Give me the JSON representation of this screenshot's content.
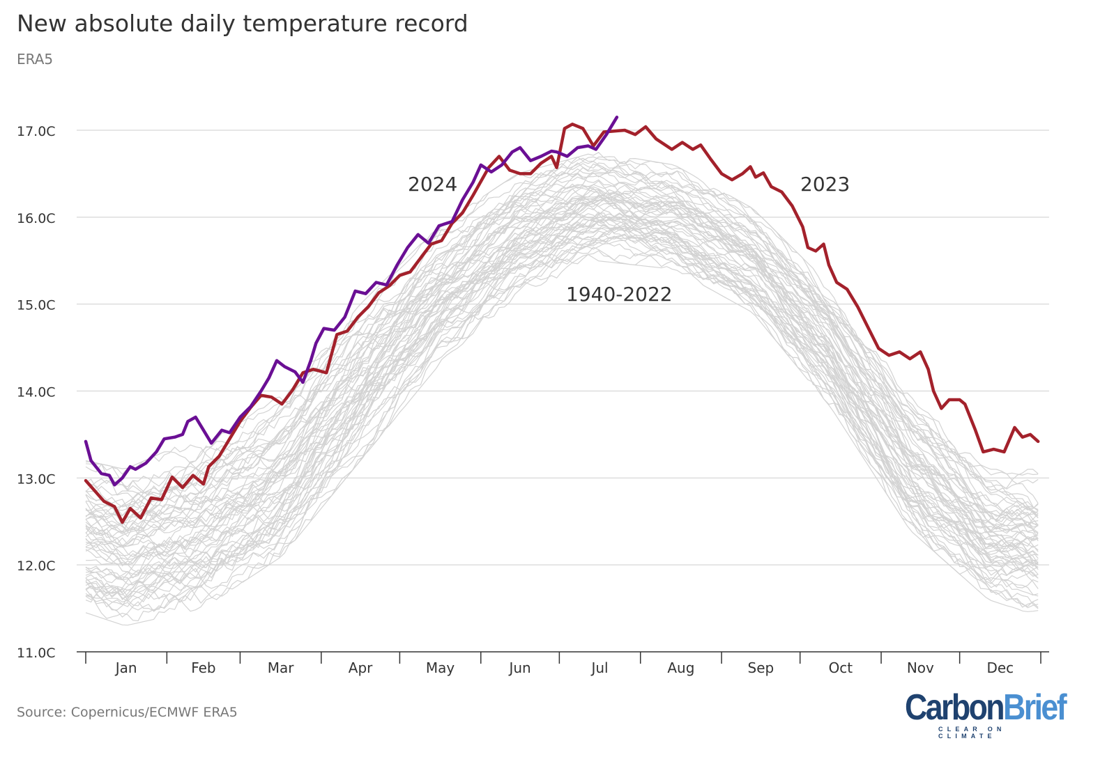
{
  "title": "New absolute daily temperature record",
  "subtitle": "ERA5",
  "source": "Source: Copernicus/ECMWF ERA5",
  "logo": {
    "part1": "Carbon",
    "part2": "Brief",
    "tagline": "CLEAR ON CLIMATE"
  },
  "chart_data": {
    "type": "line",
    "title": "New absolute daily temperature record",
    "subtitle": "ERA5",
    "xlabel": "",
    "ylabel": "",
    "ylim": [
      11.0,
      17.0
    ],
    "yticks": [
      11.0,
      12.0,
      13.0,
      14.0,
      15.0,
      16.0,
      17.0
    ],
    "ytick_labels": [
      "11.0C",
      "12.0C",
      "13.0C",
      "14.0C",
      "15.0C",
      "16.0C",
      "17.0C"
    ],
    "x_unit": "day of year",
    "xlim": [
      0,
      365
    ],
    "month_boundaries": [
      0,
      31,
      59,
      90,
      120,
      151,
      181,
      212,
      243,
      273,
      304,
      334,
      365
    ],
    "month_labels": [
      "Jan",
      "Feb",
      "Mar",
      "Apr",
      "May",
      "Jun",
      "Jul",
      "Aug",
      "Sep",
      "Oct",
      "Nov",
      "Dec"
    ],
    "grid": "horizontal",
    "colors": {
      "2024": "#6a0f94",
      "2023": "#a3212b",
      "historical": "#d3d3d3"
    },
    "annotations": [
      "2024",
      "2023",
      "1940-2022"
    ],
    "historical_envelope": {
      "name": "1940-2022",
      "day": [
        0,
        15,
        45,
        75,
        105,
        135,
        165,
        195,
        225,
        255,
        285,
        315,
        345,
        365
      ],
      "min": [
        11.45,
        11.3,
        11.5,
        12.1,
        13.2,
        14.3,
        15.1,
        15.5,
        15.4,
        14.9,
        13.8,
        12.4,
        11.6,
        11.4
      ],
      "max": [
        13.2,
        13.1,
        13.5,
        14.0,
        15.0,
        15.9,
        16.5,
        16.75,
        16.6,
        16.1,
        15.2,
        14.0,
        13.1,
        13.1
      ]
    },
    "series": [
      {
        "name": "2023",
        "day": [
          0,
          7,
          11,
          14,
          17,
          21,
          25,
          29,
          33,
          37,
          41,
          45,
          47,
          51,
          55,
          59,
          63,
          67,
          71,
          75,
          79,
          83,
          87,
          92,
          96,
          100,
          104,
          108,
          112,
          116,
          120,
          124,
          128,
          132,
          136,
          140,
          144,
          148,
          154,
          158,
          162,
          166,
          170,
          174,
          178,
          180,
          183,
          186,
          190,
          194,
          198,
          202,
          206,
          210,
          214,
          218,
          222,
          224,
          228,
          232,
          235,
          239,
          243,
          247,
          251,
          254,
          256,
          259,
          262,
          266,
          270,
          274,
          276,
          279,
          282,
          284,
          287,
          291,
          295,
          299,
          303,
          307,
          311,
          315,
          319,
          322,
          324,
          327,
          330,
          334,
          336,
          340,
          343,
          347,
          351,
          355,
          358,
          361,
          364
        ],
        "values": [
          12.97,
          12.73,
          12.67,
          12.49,
          12.65,
          12.54,
          12.77,
          12.75,
          13.01,
          12.89,
          13.03,
          12.93,
          13.13,
          13.25,
          13.45,
          13.65,
          13.81,
          13.95,
          13.93,
          13.85,
          14.01,
          14.21,
          14.25,
          14.21,
          14.65,
          14.69,
          14.85,
          14.97,
          15.13,
          15.21,
          15.33,
          15.37,
          15.53,
          15.69,
          15.73,
          15.93,
          16.05,
          16.25,
          16.57,
          16.7,
          16.54,
          16.5,
          16.5,
          16.62,
          16.7,
          16.57,
          17.02,
          17.07,
          17.02,
          16.82,
          16.98,
          16.99,
          17.0,
          16.95,
          17.04,
          16.9,
          16.82,
          16.78,
          16.86,
          16.78,
          16.83,
          16.66,
          16.5,
          16.43,
          16.5,
          16.58,
          16.46,
          16.51,
          16.35,
          16.29,
          16.13,
          15.89,
          15.65,
          15.61,
          15.69,
          15.45,
          15.25,
          15.17,
          14.97,
          14.73,
          14.49,
          14.41,
          14.45,
          14.37,
          14.45,
          14.25,
          14.0,
          13.8,
          13.9,
          13.9,
          13.85,
          13.55,
          13.3,
          13.33,
          13.3,
          13.58,
          13.47,
          13.5,
          13.42
        ]
      },
      {
        "name": "2024",
        "day": [
          0,
          2,
          6,
          9,
          11,
          14,
          17,
          19,
          23,
          27,
          30,
          34,
          37,
          39,
          42,
          45,
          48,
          52,
          55,
          59,
          63,
          67,
          70,
          73,
          76,
          80,
          83,
          86,
          88,
          91,
          95,
          99,
          103,
          107,
          111,
          115,
          119,
          123,
          127,
          131,
          135,
          140,
          144,
          148,
          151,
          155,
          159,
          163,
          166,
          170,
          174,
          178,
          180,
          184,
          188,
          192,
          195,
          199,
          203
        ],
        "values": [
          13.42,
          13.2,
          13.05,
          13.03,
          12.92,
          13.0,
          13.13,
          13.1,
          13.17,
          13.3,
          13.45,
          13.47,
          13.5,
          13.65,
          13.7,
          13.55,
          13.4,
          13.55,
          13.52,
          13.7,
          13.82,
          14.0,
          14.15,
          14.35,
          14.28,
          14.22,
          14.1,
          14.35,
          14.55,
          14.72,
          14.7,
          14.85,
          15.15,
          15.12,
          15.25,
          15.22,
          15.45,
          15.65,
          15.8,
          15.7,
          15.9,
          15.95,
          16.2,
          16.4,
          16.6,
          16.52,
          16.6,
          16.75,
          16.8,
          16.65,
          16.7,
          16.76,
          16.75,
          16.7,
          16.8,
          16.82,
          16.78,
          16.95,
          17.15
        ]
      }
    ]
  }
}
